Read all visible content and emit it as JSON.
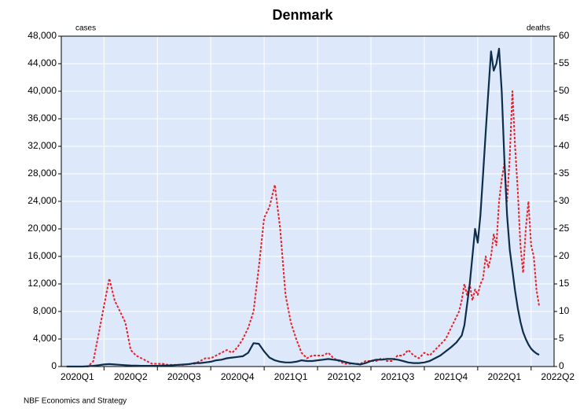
{
  "chart_data": {
    "type": "line",
    "title": "Denmark",
    "ylabel": "cases",
    "y2label": "deaths",
    "footer": "NBF Economics and Strategy",
    "categories": [
      "2020Q1",
      "2020Q2",
      "2020Q3",
      "2020Q4",
      "2021Q1",
      "2021Q2",
      "2021Q3",
      "2021Q4",
      "2022Q1",
      "2022Q2"
    ],
    "x": [
      0.3,
      0.4,
      0.5,
      0.6,
      0.7,
      0.8,
      0.9,
      1.0,
      1.1,
      1.2,
      1.3,
      1.4,
      1.5,
      1.6,
      1.7,
      1.8,
      1.9,
      2.0,
      2.1,
      2.2,
      2.3,
      2.4,
      2.5,
      2.6,
      2.7,
      2.8,
      2.9,
      3.0,
      3.1,
      3.2,
      3.3,
      3.4,
      3.5,
      3.6,
      3.7,
      3.8,
      3.9,
      4.0,
      4.1,
      4.2,
      4.3,
      4.4,
      4.5,
      4.6,
      4.7,
      4.8,
      4.9,
      5.0,
      5.1,
      5.2,
      5.3,
      5.4,
      5.5,
      5.6,
      5.7,
      5.8,
      5.9,
      6.0,
      6.1,
      6.2,
      6.3,
      6.4,
      6.5,
      6.6,
      6.7,
      6.8,
      6.9,
      7.0,
      7.1,
      7.2,
      7.3,
      7.4,
      7.5,
      7.6,
      7.65,
      7.7,
      7.75,
      7.8,
      7.85,
      7.9,
      7.95,
      8.0,
      8.05,
      8.1,
      8.15,
      8.2,
      8.25,
      8.3,
      8.35,
      8.4,
      8.45,
      8.5,
      8.55,
      8.6,
      8.65,
      8.7,
      8.75,
      8.8,
      8.85,
      8.9,
      8.95,
      9.0,
      9.05,
      9.1,
      9.15
    ],
    "series": [
      {
        "name": "cases",
        "color": "#0d2d4a",
        "dash": "solid",
        "values": [
          0,
          0,
          0,
          0,
          50,
          100,
          200,
          300,
          350,
          300,
          250,
          200,
          150,
          120,
          100,
          100,
          100,
          100,
          150,
          150,
          200,
          250,
          300,
          350,
          500,
          500,
          600,
          700,
          900,
          1000,
          1200,
          1300,
          1400,
          1500,
          2000,
          3400,
          3300,
          2200,
          1300,
          900,
          700,
          600,
          600,
          700,
          900,
          800,
          800,
          900,
          1000,
          1100,
          1000,
          900,
          700,
          500,
          400,
          300,
          500,
          800,
          1000,
          1000,
          1100,
          1100,
          1000,
          800,
          600,
          500,
          500,
          600,
          800,
          1200,
          1600,
          2200,
          2800,
          3500,
          4000,
          4500,
          6000,
          9000,
          12000,
          16000,
          20000,
          18000,
          22000,
          28000,
          34000,
          40000,
          45800,
          43000,
          44000,
          46200,
          40000,
          30000,
          22000,
          17000,
          14000,
          11000,
          8500,
          6500,
          5000,
          4000,
          3200,
          2600,
          2200,
          1900,
          1700
        ]
      },
      {
        "name": "deaths",
        "color": "#e8202a",
        "dash": "dotted",
        "axis": "y2",
        "values": [
          0,
          0,
          0,
          0,
          0,
          1,
          6,
          11,
          16,
          12,
          10,
          8,
          3,
          2,
          1.5,
          1,
          0.5,
          0.5,
          0.5,
          0.3,
          0.3,
          0.3,
          0.3,
          0.5,
          0.5,
          1,
          1.5,
          1.5,
          2,
          2.5,
          3,
          2.5,
          3.5,
          5,
          7,
          10,
          18,
          27,
          29,
          33,
          25,
          13,
          8,
          5,
          2.5,
          1.5,
          2,
          2,
          2,
          2.5,
          1.5,
          1,
          0.5,
          0.5,
          0.5,
          0.5,
          1,
          1,
          1,
          1.5,
          1,
          1,
          2,
          2,
          3,
          2,
          1.5,
          2.5,
          2,
          3,
          4,
          5,
          7,
          9,
          10,
          12,
          15,
          13,
          15,
          12,
          14,
          13,
          15,
          16,
          20,
          18,
          20,
          24,
          22,
          30,
          34,
          37,
          30,
          38,
          50,
          40,
          32,
          22,
          17,
          25,
          30,
          22,
          20,
          14,
          11
        ]
      }
    ],
    "xlim": [
      0.2,
      9.43
    ],
    "xticks": [
      1,
      2,
      3,
      4,
      5,
      6,
      7,
      8,
      9
    ],
    "ylim": [
      0,
      48000
    ],
    "yticks": [
      0,
      {
        "value": 4000,
        "label": "4,000"
      },
      {
        "value": 8000,
        "label": "8,000"
      },
      {
        "value": 12000,
        "label": "12,000"
      },
      {
        "value": 16000,
        "label": "16,000"
      },
      {
        "value": 20000,
        "label": "20,000"
      },
      {
        "value": 24000,
        "label": "24,000"
      },
      {
        "value": 28000,
        "label": "28,000"
      },
      {
        "value": 32000,
        "label": "32,000"
      },
      {
        "value": 36000,
        "label": "36,000"
      },
      {
        "value": 40000,
        "label": "40,000"
      },
      {
        "value": 44000,
        "label": "44,000"
      },
      {
        "value": 48000,
        "label": "48,000"
      }
    ],
    "y2lim": [
      0,
      60
    ],
    "y2ticks": [
      0,
      5,
      10,
      15,
      20,
      25,
      30,
      35,
      40,
      45,
      50,
      55,
      60
    ],
    "grid": true,
    "plot_background": "#dde9fa"
  }
}
